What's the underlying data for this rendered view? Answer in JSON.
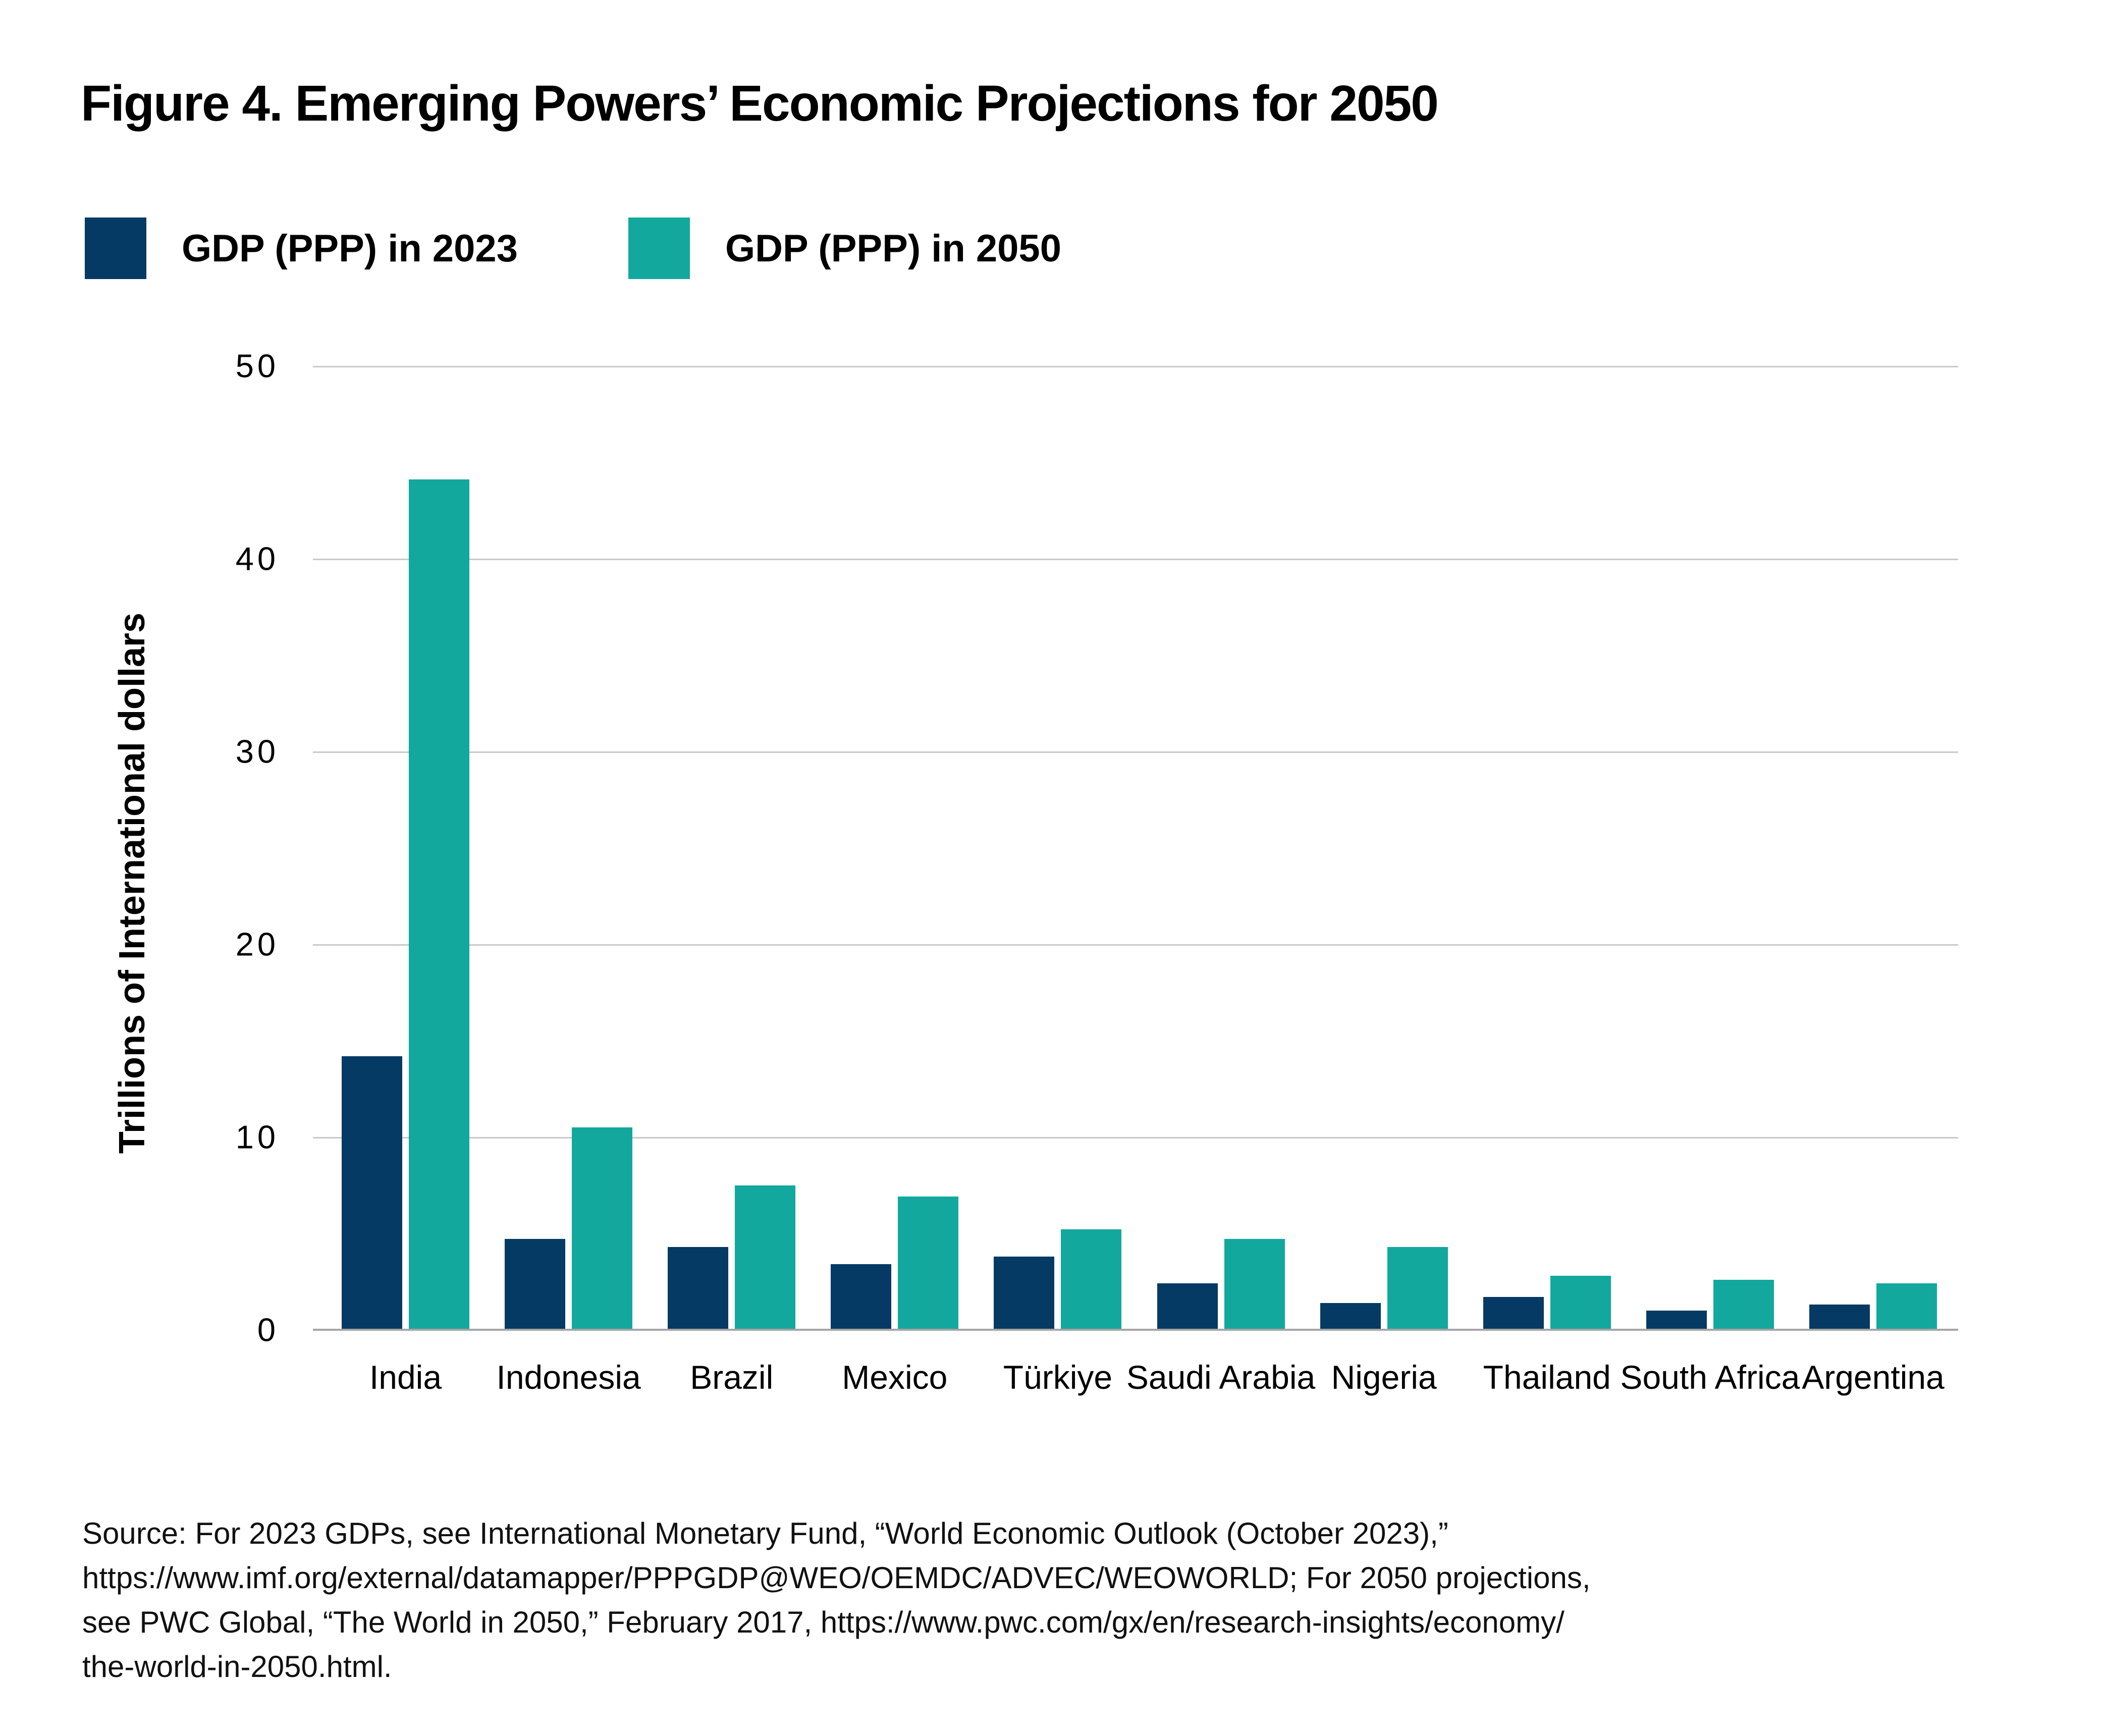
{
  "figure": {
    "title": "Figure 4. Emerging Powers’ Economic Projections for 2050"
  },
  "legend": {
    "items": [
      {
        "label": "GDP (PPP) in 2023",
        "color": "#043A63"
      },
      {
        "label": "GDP (PPP) in 2050",
        "color": "#13A89E"
      }
    ]
  },
  "chart_data": {
    "type": "bar",
    "title": "Figure 4. Emerging Powers’ Economic Projections for 2050",
    "categories": [
      "India",
      "Indonesia",
      "Brazil",
      "Mexico",
      "Türkiye",
      "Saudi Arabia",
      "Nigeria",
      "Thailand",
      "South Africa",
      "Argentina"
    ],
    "series": [
      {
        "name": "GDP (PPP) in 2023",
        "color": "#043A63",
        "values": [
          14.2,
          4.7,
          4.3,
          3.4,
          3.8,
          2.4,
          1.4,
          1.7,
          1.0,
          1.3
        ]
      },
      {
        "name": "GDP (PPP) in 2050",
        "color": "#13A89E",
        "values": [
          44.1,
          10.5,
          7.5,
          6.9,
          5.2,
          4.7,
          4.3,
          2.8,
          2.6,
          2.4
        ]
      }
    ],
    "xlabel": "",
    "ylabel": "Trillions of International dollars",
    "ylim": [
      0,
      50
    ],
    "yticks": [
      0,
      10,
      20,
      30,
      40,
      50
    ],
    "grid": "horizontal",
    "legend_position": "top-left"
  },
  "source": {
    "lines": [
      "Source: For 2023 GDPs, see International Monetary Fund, “World Economic Outlook (October 2023),”",
      "https://www.imf.org/external/datamapper/PPPGDP@WEO/OEMDC/ADVEC/WEOWORLD; For 2050 projections,",
      "see PWC Global, “The World in 2050,” February 2017, https://www.pwc.com/gx/en/research-insights/economy/",
      "the-world-in-2050.html."
    ]
  },
  "colors": {
    "navy": "#043A63",
    "teal": "#13A89E",
    "gridline": "#C9C9C9",
    "axis_line": "#A5A5A5",
    "text": "#000000"
  }
}
